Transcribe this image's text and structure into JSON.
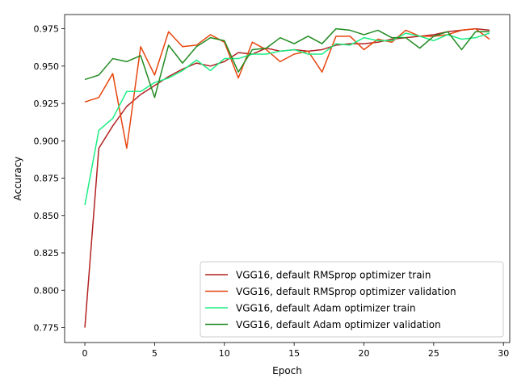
{
  "chart_data": {
    "type": "line",
    "title": "",
    "xlabel": "Epoch",
    "ylabel": "Accuracy",
    "xlim": [
      -1.45,
      30.45
    ],
    "ylim": [
      0.765,
      0.9845
    ],
    "xticks": [
      0,
      5,
      10,
      15,
      20,
      25,
      30
    ],
    "yticks": [
      0.775,
      0.8,
      0.825,
      0.85,
      0.875,
      0.9,
      0.925,
      0.95,
      0.975
    ],
    "grid": false,
    "legend_position": "lower-right",
    "x": [
      0,
      1,
      2,
      3,
      4,
      5,
      6,
      7,
      8,
      9,
      10,
      11,
      12,
      13,
      14,
      15,
      16,
      17,
      18,
      19,
      20,
      21,
      22,
      23,
      24,
      25,
      26,
      27,
      28,
      29
    ],
    "series": [
      {
        "name": "VGG16, default RMSprop optimizer train",
        "color": "#b22222",
        "values": [
          0.775,
          0.895,
          0.91,
          0.923,
          0.931,
          0.937,
          0.943,
          0.948,
          0.952,
          0.95,
          0.953,
          0.959,
          0.958,
          0.962,
          0.96,
          0.961,
          0.96,
          0.961,
          0.964,
          0.965,
          0.965,
          0.966,
          0.968,
          0.969,
          0.97,
          0.971,
          0.973,
          0.974,
          0.975,
          0.974
        ]
      },
      {
        "name": "VGG16, default RMSprop optimizer validation",
        "color": "#e8450d",
        "values": [
          0.926,
          0.929,
          0.945,
          0.895,
          0.963,
          0.944,
          0.973,
          0.963,
          0.964,
          0.971,
          0.966,
          0.942,
          0.966,
          0.961,
          0.953,
          0.958,
          0.96,
          0.946,
          0.97,
          0.97,
          0.961,
          0.968,
          0.966,
          0.974,
          0.97,
          0.97,
          0.971,
          0.974,
          0.975,
          0.968
        ]
      },
      {
        "name": "VGG16, default Adam optimizer train",
        "color": "#1aee82",
        "values": [
          0.857,
          0.907,
          0.915,
          0.933,
          0.933,
          0.939,
          0.942,
          0.947,
          0.954,
          0.947,
          0.955,
          0.955,
          0.958,
          0.958,
          0.96,
          0.961,
          0.958,
          0.958,
          0.965,
          0.964,
          0.969,
          0.967,
          0.967,
          0.972,
          0.97,
          0.967,
          0.971,
          0.968,
          0.969,
          0.972
        ]
      },
      {
        "name": "VGG16, default Adam optimizer validation",
        "color": "#228b22",
        "values": [
          0.941,
          0.944,
          0.955,
          0.953,
          0.957,
          0.929,
          0.964,
          0.952,
          0.963,
          0.969,
          0.967,
          0.946,
          0.961,
          0.962,
          0.969,
          0.965,
          0.97,
          0.965,
          0.975,
          0.974,
          0.971,
          0.974,
          0.969,
          0.969,
          0.962,
          0.97,
          0.973,
          0.961,
          0.973,
          0.973
        ]
      }
    ]
  }
}
